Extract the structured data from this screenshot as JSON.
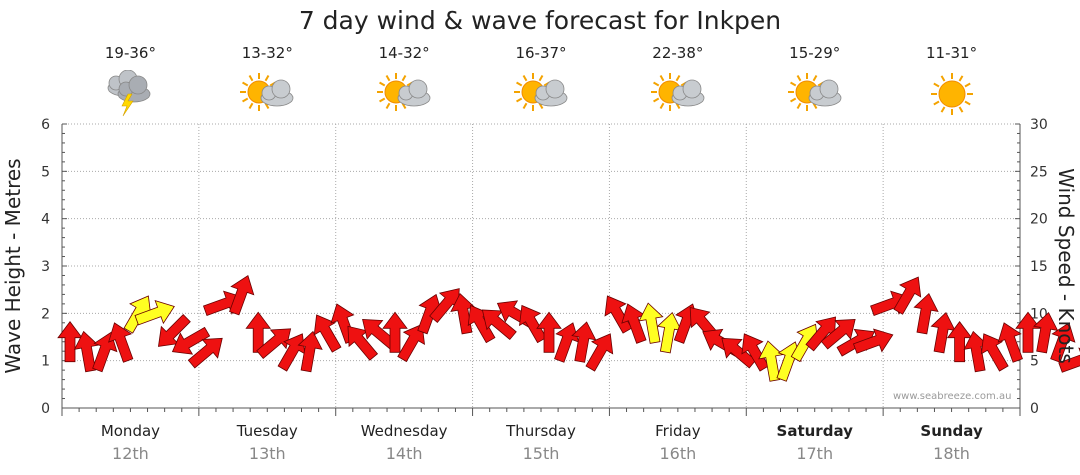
{
  "chart_data": {
    "type": "line",
    "title": "7 day wind & wave forecast for Inkpen",
    "ylabel_left": "Wave Height - Metres",
    "ylabel_right": "Wind Speed - Knots",
    "ylim_left": [
      0,
      6
    ],
    "ylim_right": [
      0,
      30
    ],
    "yticks_left": [
      "0",
      "1",
      "2",
      "3",
      "4",
      "5",
      "6"
    ],
    "yticks_right": [
      "0",
      "5",
      "10",
      "15",
      "20",
      "25",
      "30"
    ],
    "grid": true,
    "watermark": "www.seabreeze.com.au",
    "days": [
      {
        "day": "Monday",
        "date": "12th",
        "temp": "19-36°",
        "icon": "thunderstorm-icon",
        "bold": false
      },
      {
        "day": "Tuesday",
        "date": "13th",
        "temp": "13-32°",
        "icon": "partly-cloudy-icon",
        "bold": false
      },
      {
        "day": "Wednesday",
        "date": "14th",
        "temp": "14-32°",
        "icon": "partly-cloudy-icon",
        "bold": false
      },
      {
        "day": "Thursday",
        "date": "15th",
        "temp": "16-37°",
        "icon": "partly-cloudy-icon",
        "bold": false
      },
      {
        "day": "Friday",
        "date": "16th",
        "temp": "22-38°",
        "icon": "partly-cloudy-icon",
        "bold": false
      },
      {
        "day": "Saturday",
        "date": "17th",
        "temp": "15-29°",
        "icon": "partly-cloudy-icon",
        "bold": true
      },
      {
        "day": "Sunday",
        "date": "18th",
        "temp": "11-31°",
        "icon": "sunny-icon",
        "bold": true
      }
    ],
    "series": [
      {
        "name": "Wind speed (knots)",
        "colors": {
          "normal": "#ee1111",
          "strong": "#ffff22"
        },
        "x_hours": [
          0,
          3,
          6,
          9,
          12,
          15,
          18,
          21,
          24,
          27,
          30,
          33,
          36,
          39,
          42,
          45,
          48,
          51,
          54,
          57,
          60,
          63,
          66,
          69,
          72,
          75,
          78,
          81,
          84,
          87,
          90,
          93,
          96,
          99,
          102,
          105,
          108,
          111,
          114,
          117,
          120,
          123,
          126,
          129,
          132,
          135,
          138,
          141,
          144,
          147,
          150,
          153,
          156,
          159,
          162,
          165,
          168,
          171,
          174,
          177
        ],
        "values": [
          7,
          6,
          6,
          7,
          10,
          10,
          8,
          7,
          6,
          11,
          12,
          8,
          7,
          6,
          6,
          8,
          9,
          7,
          8,
          8,
          7,
          10,
          11,
          10,
          9,
          9,
          10,
          9,
          8,
          7,
          7,
          6,
          10,
          9,
          9,
          8,
          9,
          9,
          7,
          6,
          6,
          5,
          5,
          7,
          8,
          8,
          7,
          7,
          11,
          12,
          10,
          8,
          7,
          6,
          6,
          7,
          8,
          8,
          7,
          5
        ],
        "directions_deg": [
          270,
          280,
          250,
          290,
          240,
          200,
          45,
          30,
          220,
          200,
          250,
          270,
          220,
          240,
          260,
          300,
          290,
          310,
          320,
          270,
          240,
          250,
          230,
          280,
          300,
          320,
          330,
          300,
          270,
          250,
          260,
          240,
          300,
          290,
          280,
          260,
          250,
          310,
          330,
          320,
          300,
          280,
          250,
          240,
          230,
          220,
          210,
          200,
          200,
          240,
          260,
          260,
          270,
          280,
          300,
          290,
          270,
          260,
          250,
          200
        ],
        "strong": [
          false,
          false,
          false,
          false,
          true,
          true,
          false,
          false,
          false,
          false,
          false,
          false,
          false,
          false,
          false,
          false,
          false,
          false,
          false,
          false,
          false,
          false,
          false,
          false,
          false,
          false,
          false,
          false,
          false,
          false,
          false,
          false,
          false,
          false,
          true,
          true,
          false,
          false,
          false,
          false,
          false,
          true,
          true,
          true,
          false,
          false,
          false,
          false,
          false,
          false,
          false,
          false,
          false,
          false,
          false,
          false,
          false,
          false,
          false,
          false
        ]
      }
    ]
  }
}
